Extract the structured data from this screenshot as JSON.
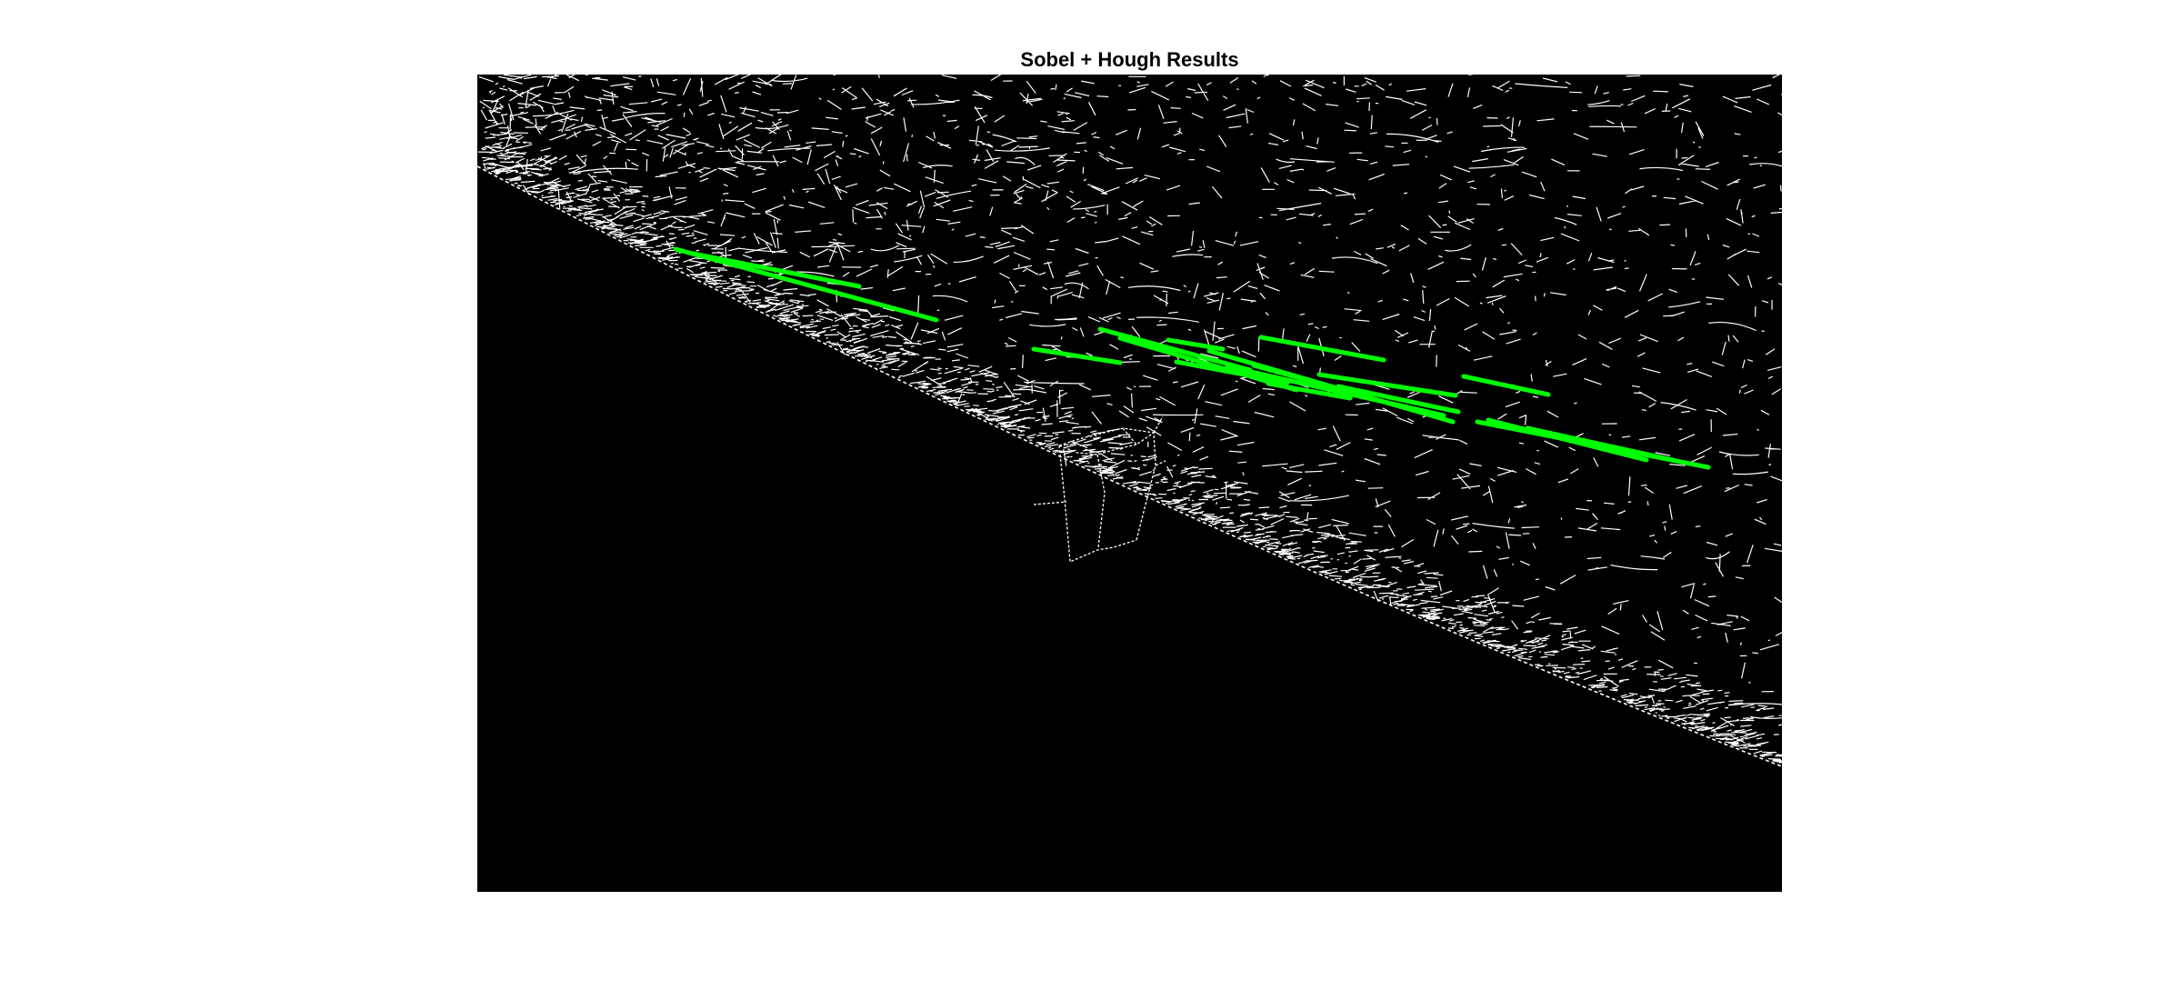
{
  "figure": {
    "title": "Sobel + Hough Results"
  },
  "colors": {
    "figure_background": "#ffffff",
    "image_background": "#000000",
    "edge_pixels": "#ffffff",
    "hough_lines": "#00ff00"
  }
}
